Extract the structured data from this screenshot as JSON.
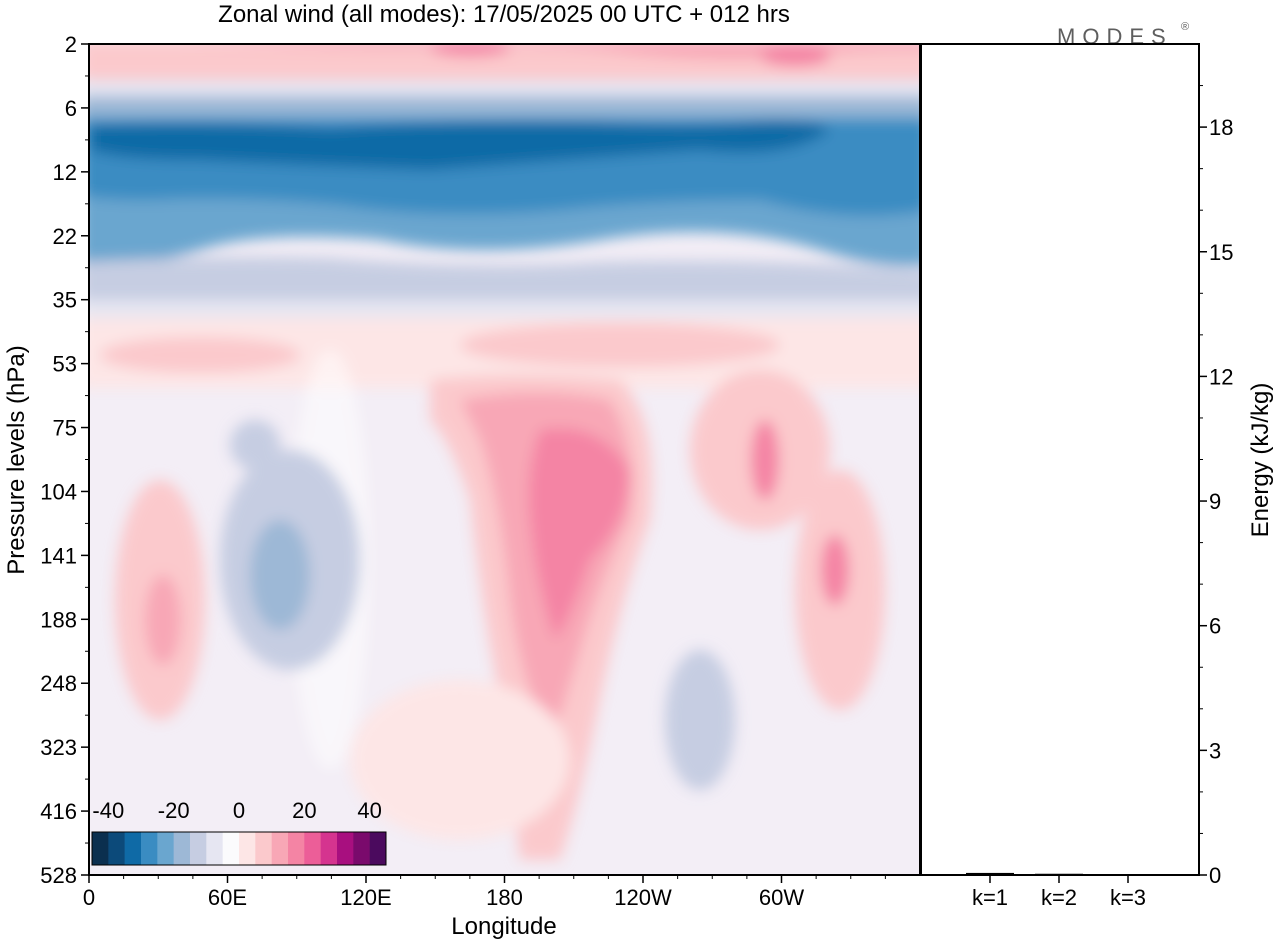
{
  "title": "Zonal wind (all modes):  17/05/2025  00 UTC  + 012 hrs",
  "logo": "MODES",
  "logo_mark": "®",
  "chart_data": [
    {
      "type": "heatmap",
      "title": "Zonal wind (all modes):  17/05/2025  00 UTC  + 012 hrs",
      "xlabel": "Longitude",
      "ylabel": "Pressure levels (hPa)",
      "x_ticks": [
        "0",
        "60E",
        "120E",
        "180",
        "120W",
        "60W"
      ],
      "y_ticks": [
        "2",
        "6",
        "12",
        "22",
        "35",
        "53",
        "75",
        "104",
        "141",
        "188",
        "248",
        "323",
        "416",
        "528"
      ],
      "colorbar": {
        "labels": [
          "-40",
          "-20",
          "0",
          "20",
          "40"
        ],
        "range": [
          -45,
          45
        ],
        "colors": [
          "#0b2f4f",
          "#0c4a7a",
          "#0f6aa6",
          "#3a8cc2",
          "#6aa6cf",
          "#9db8d6",
          "#c6cde2",
          "#e6e6f2",
          "#fbfbfd",
          "#fde6e6",
          "#fbc9cc",
          "#f8a7b6",
          "#f484a4",
          "#ec5e98",
          "#d5348f",
          "#a80f7f",
          "#7a0a6c",
          "#4b0a5e"
        ]
      },
      "field_description_levels": [
        {
          "level": "2",
          "wind": "positive 15 to 30, westerly band"
        },
        {
          "level": "6",
          "wind": "transition to easterly"
        },
        {
          "level": "12",
          "wind": "-30 to -40, strongest easterlies"
        },
        {
          "level": "22",
          "wind": "-15 to -25"
        },
        {
          "level": "35",
          "wind": "near 0"
        },
        {
          "level": "53",
          "wind": "5 to 10"
        },
        {
          "level": "104-188",
          "wind": "mixed; westerly maxima near 160W (up to 20), easterly minima near 80E (to -15)"
        },
        {
          "level": "416-528",
          "wind": "weak, near 0"
        }
      ]
    },
    {
      "type": "bar",
      "ylabel": "Energy (kJ/kg)",
      "categories": [
        "k=1",
        "k=2",
        "k=3"
      ],
      "values": [
        0.05,
        0.03,
        0.02
      ],
      "ylim": [
        0,
        20
      ],
      "y_ticks": [
        "0",
        "3",
        "6",
        "9",
        "12",
        "15",
        "18"
      ]
    }
  ]
}
